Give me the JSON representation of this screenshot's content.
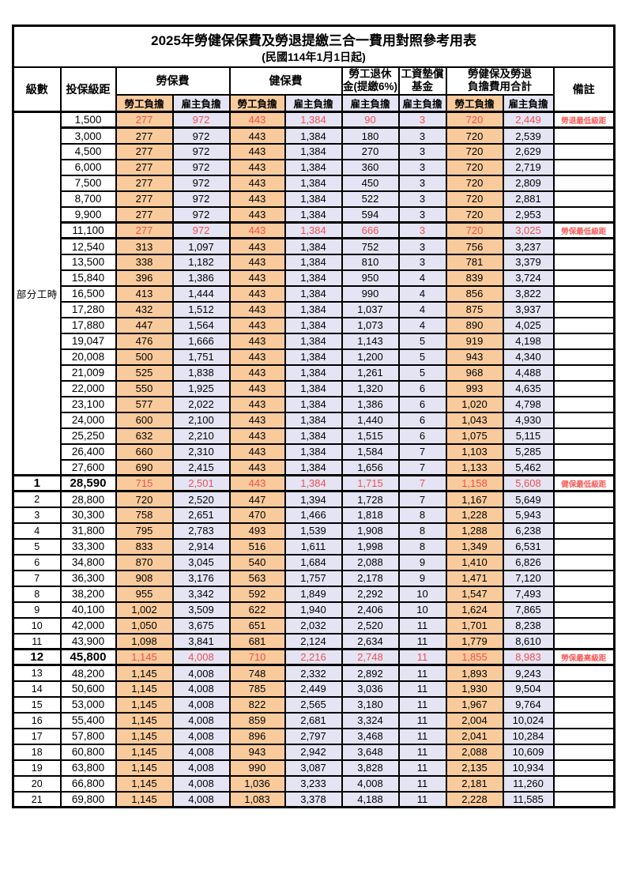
{
  "title": "2025年勞健保保費及勞退提繳三合一費用對照參考用表",
  "subtitle": "(民國114年1月1日起)",
  "header": {
    "level": "級數",
    "bracket": "投保級距",
    "labor_ins": "勞保費",
    "health_ins": "健保費",
    "pension_line1": "勞工退休",
    "pension_line2": "金(提繳6%)",
    "fund_line1": "工資墊償",
    "fund_line2": "基金",
    "total_line1": "勞健保及勞退",
    "total_line2": "負擔費用合計",
    "employee": "勞工負擔",
    "employer": "雇主負擔",
    "remark": "備註"
  },
  "colors": {
    "employee_col_bg": "#F9CB9C",
    "employer_col_bg": "#E4E4F4",
    "highlight_value_text": "#F05050",
    "remark_text": "#FA5A5A",
    "border": "#000000"
  },
  "part_time_label": "部分工時",
  "rows": [
    {
      "level": "部分工時",
      "level_rowspan": 23,
      "bracket": "1,500",
      "li_emp": "277",
      "li_er": "972",
      "hi_emp": "443",
      "hi_er": "1,384",
      "pension": "90",
      "fund": "3",
      "tot_emp": "720",
      "tot_er": "2,449",
      "remark": "勞退最低級距",
      "highlight": true,
      "big": false
    },
    {
      "level": null,
      "bracket": "3,000",
      "li_emp": "277",
      "li_er": "972",
      "hi_emp": "443",
      "hi_er": "1,384",
      "pension": "180",
      "fund": "3",
      "tot_emp": "720",
      "tot_er": "2,539",
      "remark": "",
      "highlight": false,
      "big": false
    },
    {
      "level": null,
      "bracket": "4,500",
      "li_emp": "277",
      "li_er": "972",
      "hi_emp": "443",
      "hi_er": "1,384",
      "pension": "270",
      "fund": "3",
      "tot_emp": "720",
      "tot_er": "2,629",
      "remark": "",
      "highlight": false,
      "big": false
    },
    {
      "level": null,
      "bracket": "6,000",
      "li_emp": "277",
      "li_er": "972",
      "hi_emp": "443",
      "hi_er": "1,384",
      "pension": "360",
      "fund": "3",
      "tot_emp": "720",
      "tot_er": "2,719",
      "remark": "",
      "highlight": false,
      "big": false
    },
    {
      "level": null,
      "bracket": "7,500",
      "li_emp": "277",
      "li_er": "972",
      "hi_emp": "443",
      "hi_er": "1,384",
      "pension": "450",
      "fund": "3",
      "tot_emp": "720",
      "tot_er": "2,809",
      "remark": "",
      "highlight": false,
      "big": false
    },
    {
      "level": null,
      "bracket": "8,700",
      "li_emp": "277",
      "li_er": "972",
      "hi_emp": "443",
      "hi_er": "1,384",
      "pension": "522",
      "fund": "3",
      "tot_emp": "720",
      "tot_er": "2,881",
      "remark": "",
      "highlight": false,
      "big": false
    },
    {
      "level": null,
      "bracket": "9,900",
      "li_emp": "277",
      "li_er": "972",
      "hi_emp": "443",
      "hi_er": "1,384",
      "pension": "594",
      "fund": "3",
      "tot_emp": "720",
      "tot_er": "2,953",
      "remark": "",
      "highlight": false,
      "big": false
    },
    {
      "level": null,
      "bracket": "11,100",
      "li_emp": "277",
      "li_er": "972",
      "hi_emp": "443",
      "hi_er": "1,384",
      "pension": "666",
      "fund": "3",
      "tot_emp": "720",
      "tot_er": "3,025",
      "remark": "勞保最低級距",
      "highlight": true,
      "big": false
    },
    {
      "level": null,
      "bracket": "12,540",
      "li_emp": "313",
      "li_er": "1,097",
      "hi_emp": "443",
      "hi_er": "1,384",
      "pension": "752",
      "fund": "3",
      "tot_emp": "756",
      "tot_er": "3,237",
      "remark": "",
      "highlight": false,
      "big": false
    },
    {
      "level": null,
      "bracket": "13,500",
      "li_emp": "338",
      "li_er": "1,182",
      "hi_emp": "443",
      "hi_er": "1,384",
      "pension": "810",
      "fund": "3",
      "tot_emp": "781",
      "tot_er": "3,379",
      "remark": "",
      "highlight": false,
      "big": false
    },
    {
      "level": null,
      "bracket": "15,840",
      "li_emp": "396",
      "li_er": "1,386",
      "hi_emp": "443",
      "hi_er": "1,384",
      "pension": "950",
      "fund": "4",
      "tot_emp": "839",
      "tot_er": "3,724",
      "remark": "",
      "highlight": false,
      "big": false
    },
    {
      "level": null,
      "bracket": "16,500",
      "li_emp": "413",
      "li_er": "1,444",
      "hi_emp": "443",
      "hi_er": "1,384",
      "pension": "990",
      "fund": "4",
      "tot_emp": "856",
      "tot_er": "3,822",
      "remark": "",
      "highlight": false,
      "big": false
    },
    {
      "level": null,
      "bracket": "17,280",
      "li_emp": "432",
      "li_er": "1,512",
      "hi_emp": "443",
      "hi_er": "1,384",
      "pension": "1,037",
      "fund": "4",
      "tot_emp": "875",
      "tot_er": "3,937",
      "remark": "",
      "highlight": false,
      "big": false
    },
    {
      "level": null,
      "bracket": "17,880",
      "li_emp": "447",
      "li_er": "1,564",
      "hi_emp": "443",
      "hi_er": "1,384",
      "pension": "1,073",
      "fund": "4",
      "tot_emp": "890",
      "tot_er": "4,025",
      "remark": "",
      "highlight": false,
      "big": false
    },
    {
      "level": null,
      "bracket": "19,047",
      "li_emp": "476",
      "li_er": "1,666",
      "hi_emp": "443",
      "hi_er": "1,384",
      "pension": "1,143",
      "fund": "5",
      "tot_emp": "919",
      "tot_er": "4,198",
      "remark": "",
      "highlight": false,
      "big": false
    },
    {
      "level": null,
      "bracket": "20,008",
      "li_emp": "500",
      "li_er": "1,751",
      "hi_emp": "443",
      "hi_er": "1,384",
      "pension": "1,200",
      "fund": "5",
      "tot_emp": "943",
      "tot_er": "4,340",
      "remark": "",
      "highlight": false,
      "big": false
    },
    {
      "level": null,
      "bracket": "21,009",
      "li_emp": "525",
      "li_er": "1,838",
      "hi_emp": "443",
      "hi_er": "1,384",
      "pension": "1,261",
      "fund": "5",
      "tot_emp": "968",
      "tot_er": "4,488",
      "remark": "",
      "highlight": false,
      "big": false
    },
    {
      "level": null,
      "bracket": "22,000",
      "li_emp": "550",
      "li_er": "1,925",
      "hi_emp": "443",
      "hi_er": "1,384",
      "pension": "1,320",
      "fund": "6",
      "tot_emp": "993",
      "tot_er": "4,635",
      "remark": "",
      "highlight": false,
      "big": false
    },
    {
      "level": null,
      "bracket": "23,100",
      "li_emp": "577",
      "li_er": "2,022",
      "hi_emp": "443",
      "hi_er": "1,384",
      "pension": "1,386",
      "fund": "6",
      "tot_emp": "1,020",
      "tot_er": "4,798",
      "remark": "",
      "highlight": false,
      "big": false
    },
    {
      "level": null,
      "bracket": "24,000",
      "li_emp": "600",
      "li_er": "2,100",
      "hi_emp": "443",
      "hi_er": "1,384",
      "pension": "1,440",
      "fund": "6",
      "tot_emp": "1,043",
      "tot_er": "4,930",
      "remark": "",
      "highlight": false,
      "big": false
    },
    {
      "level": null,
      "bracket": "25,250",
      "li_emp": "632",
      "li_er": "2,210",
      "hi_emp": "443",
      "hi_er": "1,384",
      "pension": "1,515",
      "fund": "6",
      "tot_emp": "1,075",
      "tot_er": "5,115",
      "remark": "",
      "highlight": false,
      "big": false
    },
    {
      "level": null,
      "bracket": "26,400",
      "li_emp": "660",
      "li_er": "2,310",
      "hi_emp": "443",
      "hi_er": "1,384",
      "pension": "1,584",
      "fund": "7",
      "tot_emp": "1,103",
      "tot_er": "5,285",
      "remark": "",
      "highlight": false,
      "big": false
    },
    {
      "level": null,
      "bracket": "27,600",
      "li_emp": "690",
      "li_er": "2,415",
      "hi_emp": "443",
      "hi_er": "1,384",
      "pension": "1,656",
      "fund": "7",
      "tot_emp": "1,133",
      "tot_er": "5,462",
      "remark": "",
      "highlight": false,
      "big": false
    },
    {
      "level": "1",
      "bracket": "28,590",
      "li_emp": "715",
      "li_er": "2,501",
      "hi_emp": "443",
      "hi_er": "1,384",
      "pension": "1,715",
      "fund": "7",
      "tot_emp": "1,158",
      "tot_er": "5,608",
      "remark": "健保最低級距",
      "highlight": true,
      "big": true
    },
    {
      "level": "2",
      "bracket": "28,800",
      "li_emp": "720",
      "li_er": "2,520",
      "hi_emp": "447",
      "hi_er": "1,394",
      "pension": "1,728",
      "fund": "7",
      "tot_emp": "1,167",
      "tot_er": "5,649",
      "remark": "",
      "highlight": false,
      "big": false
    },
    {
      "level": "3",
      "bracket": "30,300",
      "li_emp": "758",
      "li_er": "2,651",
      "hi_emp": "470",
      "hi_er": "1,466",
      "pension": "1,818",
      "fund": "8",
      "tot_emp": "1,228",
      "tot_er": "5,943",
      "remark": "",
      "highlight": false,
      "big": false
    },
    {
      "level": "4",
      "bracket": "31,800",
      "li_emp": "795",
      "li_er": "2,783",
      "hi_emp": "493",
      "hi_er": "1,539",
      "pension": "1,908",
      "fund": "8",
      "tot_emp": "1,288",
      "tot_er": "6,238",
      "remark": "",
      "highlight": false,
      "big": false
    },
    {
      "level": "5",
      "bracket": "33,300",
      "li_emp": "833",
      "li_er": "2,914",
      "hi_emp": "516",
      "hi_er": "1,611",
      "pension": "1,998",
      "fund": "8",
      "tot_emp": "1,349",
      "tot_er": "6,531",
      "remark": "",
      "highlight": false,
      "big": false
    },
    {
      "level": "6",
      "bracket": "34,800",
      "li_emp": "870",
      "li_er": "3,045",
      "hi_emp": "540",
      "hi_er": "1,684",
      "pension": "2,088",
      "fund": "9",
      "tot_emp": "1,410",
      "tot_er": "6,826",
      "remark": "",
      "highlight": false,
      "big": false
    },
    {
      "level": "7",
      "bracket": "36,300",
      "li_emp": "908",
      "li_er": "3,176",
      "hi_emp": "563",
      "hi_er": "1,757",
      "pension": "2,178",
      "fund": "9",
      "tot_emp": "1,471",
      "tot_er": "7,120",
      "remark": "",
      "highlight": false,
      "big": false
    },
    {
      "level": "8",
      "bracket": "38,200",
      "li_emp": "955",
      "li_er": "3,342",
      "hi_emp": "592",
      "hi_er": "1,849",
      "pension": "2,292",
      "fund": "10",
      "tot_emp": "1,547",
      "tot_er": "7,493",
      "remark": "",
      "highlight": false,
      "big": false
    },
    {
      "level": "9",
      "bracket": "40,100",
      "li_emp": "1,002",
      "li_er": "3,509",
      "hi_emp": "622",
      "hi_er": "1,940",
      "pension": "2,406",
      "fund": "10",
      "tot_emp": "1,624",
      "tot_er": "7,865",
      "remark": "",
      "highlight": false,
      "big": false
    },
    {
      "level": "10",
      "bracket": "42,000",
      "li_emp": "1,050",
      "li_er": "3,675",
      "hi_emp": "651",
      "hi_er": "2,032",
      "pension": "2,520",
      "fund": "11",
      "tot_emp": "1,701",
      "tot_er": "8,238",
      "remark": "",
      "highlight": false,
      "big": false
    },
    {
      "level": "11",
      "bracket": "43,900",
      "li_emp": "1,098",
      "li_er": "3,841",
      "hi_emp": "681",
      "hi_er": "2,124",
      "pension": "2,634",
      "fund": "11",
      "tot_emp": "1,779",
      "tot_er": "8,610",
      "remark": "",
      "highlight": false,
      "big": false
    },
    {
      "level": "12",
      "bracket": "45,800",
      "li_emp": "1,145",
      "li_er": "4,008",
      "hi_emp": "710",
      "hi_er": "2,216",
      "pension": "2,748",
      "fund": "11",
      "tot_emp": "1,855",
      "tot_er": "8,983",
      "remark": "勞保最高級距",
      "highlight": true,
      "big": true
    },
    {
      "level": "13",
      "bracket": "48,200",
      "li_emp": "1,145",
      "li_er": "4,008",
      "hi_emp": "748",
      "hi_er": "2,332",
      "pension": "2,892",
      "fund": "11",
      "tot_emp": "1,893",
      "tot_er": "9,243",
      "remark": "",
      "highlight": false,
      "big": false
    },
    {
      "level": "14",
      "bracket": "50,600",
      "li_emp": "1,145",
      "li_er": "4,008",
      "hi_emp": "785",
      "hi_er": "2,449",
      "pension": "3,036",
      "fund": "11",
      "tot_emp": "1,930",
      "tot_er": "9,504",
      "remark": "",
      "highlight": false,
      "big": false
    },
    {
      "level": "15",
      "bracket": "53,000",
      "li_emp": "1,145",
      "li_er": "4,008",
      "hi_emp": "822",
      "hi_er": "2,565",
      "pension": "3,180",
      "fund": "11",
      "tot_emp": "1,967",
      "tot_er": "9,764",
      "remark": "",
      "highlight": false,
      "big": false
    },
    {
      "level": "16",
      "bracket": "55,400",
      "li_emp": "1,145",
      "li_er": "4,008",
      "hi_emp": "859",
      "hi_er": "2,681",
      "pension": "3,324",
      "fund": "11",
      "tot_emp": "2,004",
      "tot_er": "10,024",
      "remark": "",
      "highlight": false,
      "big": false
    },
    {
      "level": "17",
      "bracket": "57,800",
      "li_emp": "1,145",
      "li_er": "4,008",
      "hi_emp": "896",
      "hi_er": "2,797",
      "pension": "3,468",
      "fund": "11",
      "tot_emp": "2,041",
      "tot_er": "10,284",
      "remark": "",
      "highlight": false,
      "big": false
    },
    {
      "level": "18",
      "bracket": "60,800",
      "li_emp": "1,145",
      "li_er": "4,008",
      "hi_emp": "943",
      "hi_er": "2,942",
      "pension": "3,648",
      "fund": "11",
      "tot_emp": "2,088",
      "tot_er": "10,609",
      "remark": "",
      "highlight": false,
      "big": false
    },
    {
      "level": "19",
      "bracket": "63,800",
      "li_emp": "1,145",
      "li_er": "4,008",
      "hi_emp": "990",
      "hi_er": "3,087",
      "pension": "3,828",
      "fund": "11",
      "tot_emp": "2,135",
      "tot_er": "10,934",
      "remark": "",
      "highlight": false,
      "big": false
    },
    {
      "level": "20",
      "bracket": "66,800",
      "li_emp": "1,145",
      "li_er": "4,008",
      "hi_emp": "1,036",
      "hi_er": "3,233",
      "pension": "4,008",
      "fund": "11",
      "tot_emp": "2,181",
      "tot_er": "11,260",
      "remark": "",
      "highlight": false,
      "big": false
    },
    {
      "level": "21",
      "bracket": "69,800",
      "li_emp": "1,145",
      "li_er": "4,008",
      "hi_emp": "1,083",
      "hi_er": "3,378",
      "pension": "4,188",
      "fund": "11",
      "tot_emp": "2,228",
      "tot_er": "11,585",
      "remark": "",
      "highlight": false,
      "big": false
    }
  ]
}
